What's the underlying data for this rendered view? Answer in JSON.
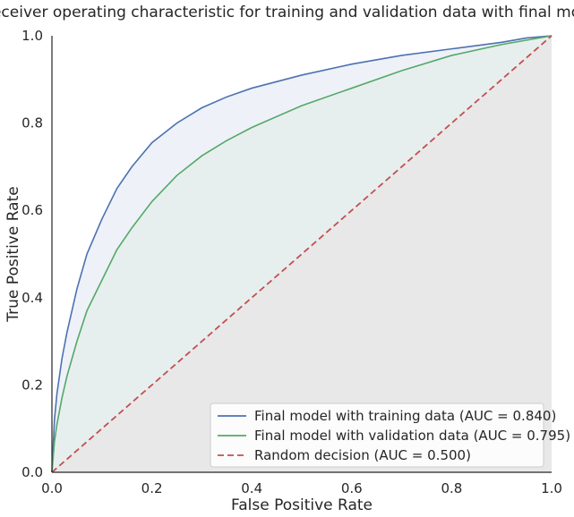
{
  "chart_data": {
    "type": "line",
    "title": "Receiver operating characteristic for training and validation data with final model",
    "xlabel": "False Positive Rate",
    "ylabel": "True Positive Rate",
    "xlim": [
      0,
      1
    ],
    "ylim": [
      0,
      1
    ],
    "xticks": [
      "0.0",
      "0.2",
      "0.4",
      "0.6",
      "0.8",
      "1.0"
    ],
    "yticks": [
      "0.0",
      "0.2",
      "0.4",
      "0.6",
      "0.8",
      "1.0"
    ],
    "grid": false,
    "legend_position": "lower-right",
    "series": [
      {
        "name": "Final model with training data (AUC = 0.840)",
        "color": "#4c72b0",
        "style": "solid",
        "fill": "#eef1f8",
        "x": [
          0,
          0.005,
          0.01,
          0.02,
          0.03,
          0.05,
          0.07,
          0.1,
          0.13,
          0.16,
          0.2,
          0.25,
          0.3,
          0.35,
          0.4,
          0.5,
          0.6,
          0.7,
          0.8,
          0.9,
          0.95,
          1.0
        ],
        "y": [
          0,
          0.12,
          0.18,
          0.26,
          0.32,
          0.42,
          0.5,
          0.58,
          0.65,
          0.7,
          0.755,
          0.8,
          0.835,
          0.86,
          0.88,
          0.91,
          0.935,
          0.955,
          0.97,
          0.985,
          0.995,
          1.0
        ]
      },
      {
        "name": "Final model with validation data (AUC = 0.795)",
        "color": "#55a868",
        "style": "solid",
        "fill": "#e6efee",
        "x": [
          0,
          0.005,
          0.01,
          0.02,
          0.03,
          0.05,
          0.07,
          0.1,
          0.13,
          0.16,
          0.2,
          0.25,
          0.3,
          0.35,
          0.4,
          0.5,
          0.6,
          0.7,
          0.8,
          0.9,
          0.95,
          1.0
        ],
        "y": [
          0,
          0.07,
          0.11,
          0.17,
          0.22,
          0.3,
          0.37,
          0.44,
          0.51,
          0.56,
          0.62,
          0.68,
          0.725,
          0.76,
          0.79,
          0.84,
          0.88,
          0.92,
          0.955,
          0.98,
          0.99,
          1.0
        ]
      },
      {
        "name": "Random decision (AUC = 0.500)",
        "color": "#c44e52",
        "style": "dashed",
        "fill": "#e8e8e8",
        "x": [
          0,
          1
        ],
        "y": [
          0,
          1
        ]
      }
    ]
  }
}
